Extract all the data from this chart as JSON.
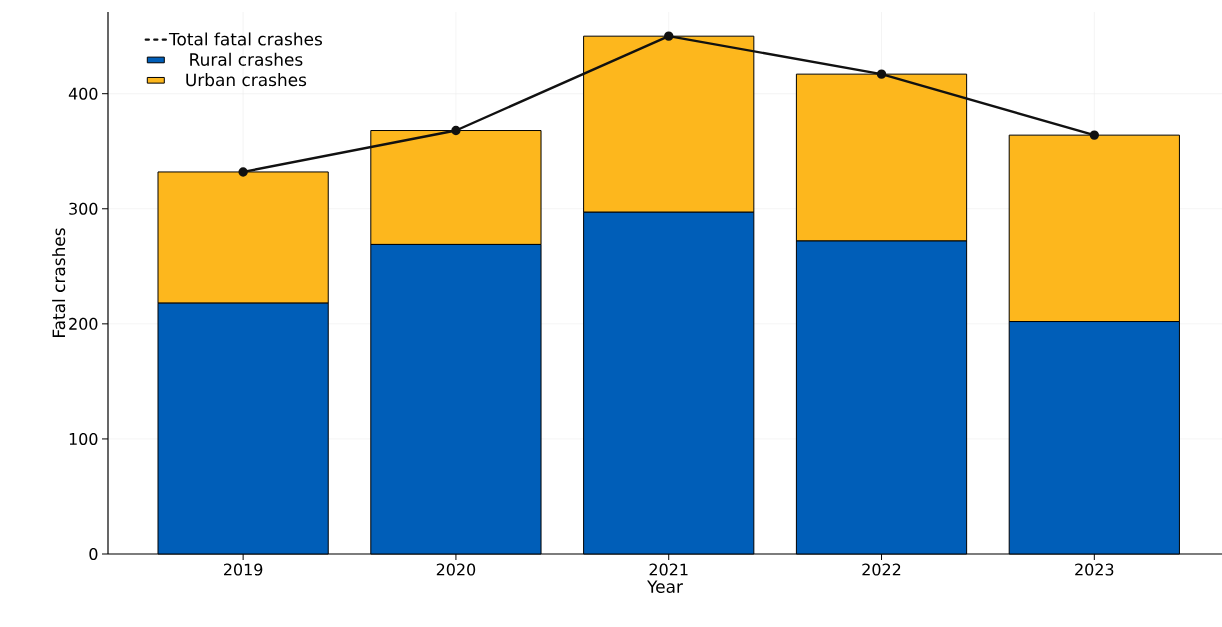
{
  "chart_data": {
    "type": "bar",
    "stacked": true,
    "xlabel": "Year",
    "ylabel": "Fatal crashes",
    "categories": [
      "2019",
      "2020",
      "2021",
      "2022",
      "2023"
    ],
    "series": [
      {
        "name": "Rural crashes",
        "color": "#005eb8",
        "values": [
          218,
          269,
          297,
          272,
          202
        ]
      },
      {
        "name": "Urban crashes",
        "color": "#fdb71d",
        "values": [
          114,
          99,
          153,
          145,
          162
        ]
      },
      {
        "name": "Total fatal crashes",
        "type": "line",
        "color": "#111111",
        "marker": "circle",
        "line_style": "solid",
        "values": [
          332,
          368,
          450,
          417,
          364
        ]
      }
    ],
    "ylim": [
      0,
      471
    ],
    "yticks": [
      0,
      100,
      200,
      300,
      400
    ],
    "grid": true,
    "legend": "top left"
  }
}
